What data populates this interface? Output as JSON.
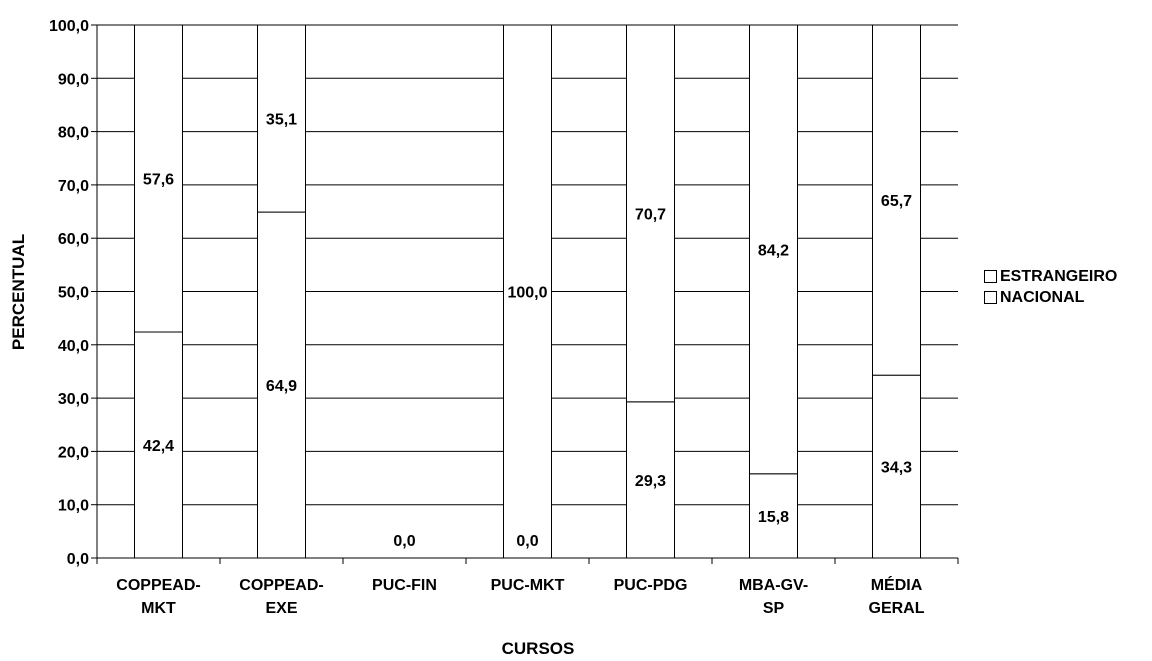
{
  "chart_data": {
    "type": "bar",
    "stacked": true,
    "title": "",
    "xlabel": "CURSOS",
    "ylabel": "PERCENTUAL",
    "ylim": [
      0,
      100
    ],
    "ytick_step": 10,
    "ytick_labels": [
      "0,0",
      "10,0",
      "20,0",
      "30,0",
      "40,0",
      "50,0",
      "60,0",
      "70,0",
      "80,0",
      "90,0",
      "100,0"
    ],
    "grid": true,
    "legend_position": "right",
    "categories": [
      [
        "COPPEAD-",
        "MKT"
      ],
      [
        "COPPEAD-",
        "EXE"
      ],
      [
        "PUC-FIN"
      ],
      [
        "PUC-MKT"
      ],
      [
        "PUC-PDG"
      ],
      [
        "MBA-GV-",
        "SP"
      ],
      [
        "MÉDIA",
        "GERAL"
      ]
    ],
    "series": [
      {
        "name": "NACIONAL",
        "color": "#ffffff",
        "values": [
          42.4,
          64.9,
          0.0,
          0.0,
          29.3,
          15.8,
          34.3
        ],
        "labels": [
          "42,4",
          "64,9",
          "0,0",
          "0,0",
          "29,3",
          "15,8",
          "34,3"
        ]
      },
      {
        "name": "ESTRANGEIRO",
        "color": "#ffffff",
        "values": [
          57.6,
          35.1,
          0.0,
          100.0,
          70.7,
          84.2,
          65.7
        ],
        "labels": [
          "57,6",
          "35,1",
          "",
          "100,0",
          "70,7",
          "84,2",
          "65,7"
        ]
      }
    ]
  },
  "legend": {
    "items": [
      {
        "label": "ESTRANGEIRO"
      },
      {
        "label": "NACIONAL"
      }
    ]
  }
}
